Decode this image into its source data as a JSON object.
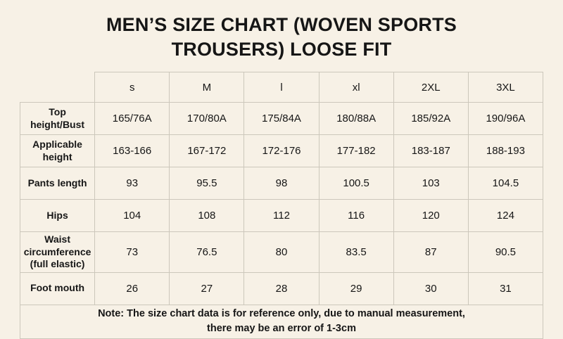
{
  "title": "MEN’S SIZE CHART (WOVEN SPORTS\nTROUSERS) LOOSE FIT",
  "note": "Note: The size chart data is for reference only, due to manual measurement,\nthere may be an error of 1-3cm",
  "colors": {
    "background": "#f7f1e6",
    "border": "#ccc7bb",
    "text": "#161616"
  },
  "chart_data": {
    "type": "table",
    "title": "MEN’S SIZE CHART (WOVEN SPORTS TROUSERS) LOOSE FIT",
    "columns": [
      "s",
      "M",
      "l",
      "xl",
      "2XL",
      "3XL"
    ],
    "rows": [
      {
        "label": "Top height/Bust",
        "values": [
          "165/76A",
          "170/80A",
          "175/84A",
          "180/88A",
          "185/92A",
          "190/96A"
        ]
      },
      {
        "label": "Applicable height",
        "values": [
          "163-166",
          "167-172",
          "172-176",
          "177-182",
          "183-187",
          "188-193"
        ]
      },
      {
        "label": "Pants length",
        "values": [
          "93",
          "95.5",
          "98",
          "100.5",
          "103",
          "104.5"
        ]
      },
      {
        "label": "Hips",
        "values": [
          "104",
          "108",
          "112",
          "116",
          "120",
          "124"
        ]
      },
      {
        "label": "Waist circumference\n(full elastic)",
        "values": [
          "73",
          "76.5",
          "80",
          "83.5",
          "87",
          "90.5"
        ]
      },
      {
        "label": "Foot mouth",
        "values": [
          "26",
          "27",
          "28",
          "29",
          "30",
          "31"
        ]
      }
    ]
  }
}
